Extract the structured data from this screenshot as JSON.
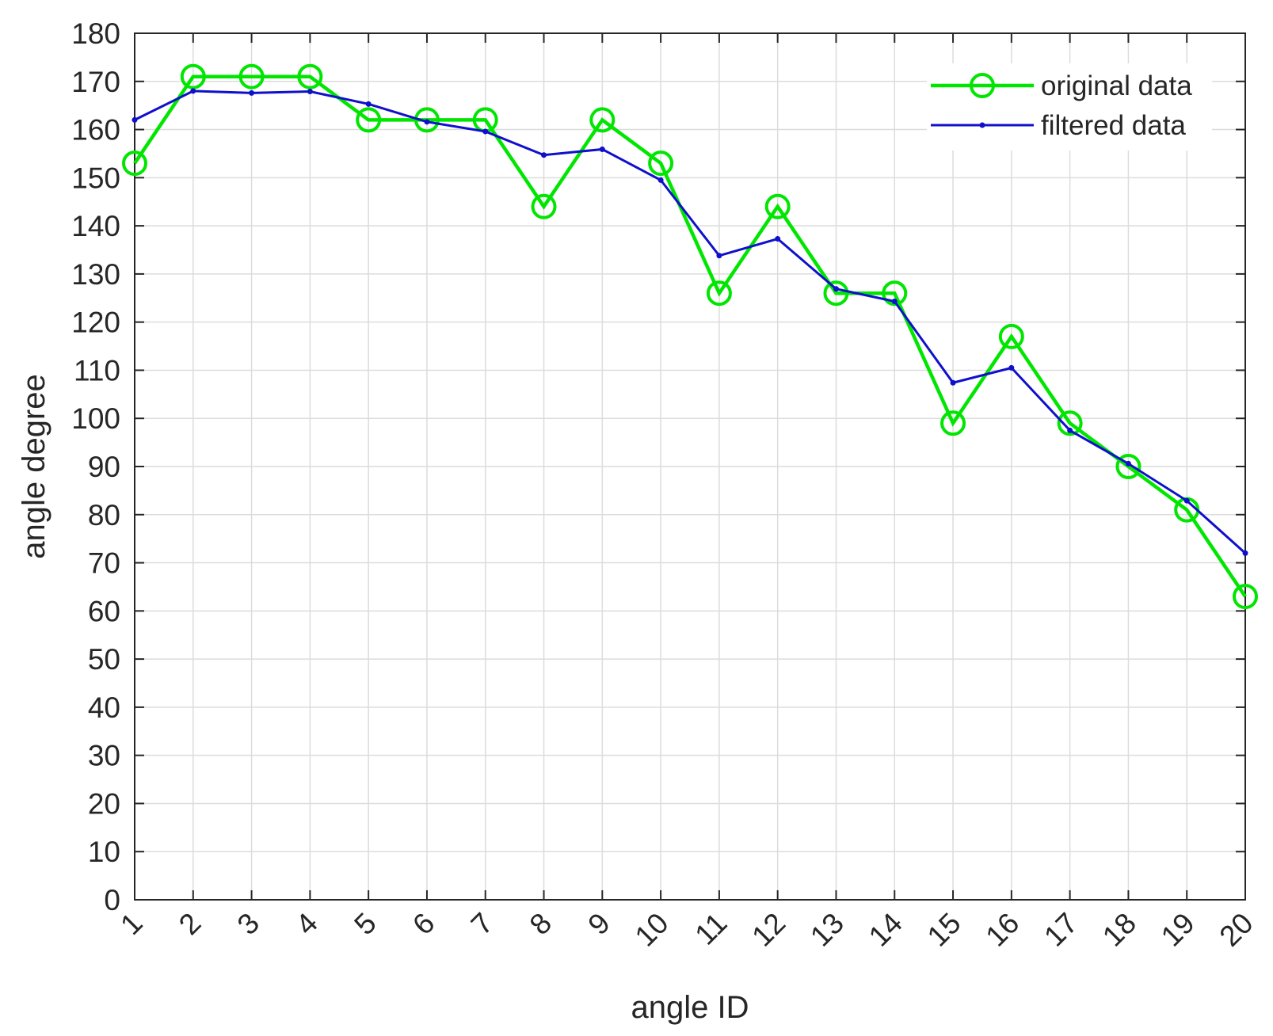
{
  "chart_data": {
    "type": "line",
    "xlabel": "angle ID",
    "ylabel": "angle degree",
    "x": [
      1,
      2,
      3,
      4,
      5,
      6,
      7,
      8,
      9,
      10,
      11,
      12,
      13,
      14,
      15,
      16,
      17,
      18,
      19,
      20
    ],
    "xlim": [
      1,
      20
    ],
    "ylim": [
      0,
      180
    ],
    "xticks": [
      "1",
      "2",
      "3",
      "4",
      "5",
      "6",
      "7",
      "8",
      "9",
      "10",
      "11",
      "12",
      "13",
      "14",
      "15",
      "16",
      "17",
      "18",
      "19",
      "20"
    ],
    "yticks": [
      0,
      10,
      20,
      30,
      40,
      50,
      60,
      70,
      80,
      90,
      100,
      110,
      120,
      130,
      140,
      150,
      160,
      170,
      180
    ],
    "grid": true,
    "legend_position": "top-right",
    "series": [
      {
        "name": "original data",
        "color": "#00e600",
        "marker": "circle",
        "values": [
          153,
          171,
          171,
          171,
          162,
          162,
          162,
          144,
          162,
          153,
          126,
          144,
          126,
          126,
          99,
          117,
          99,
          90,
          81,
          63
        ]
      },
      {
        "name": "filtered data",
        "color": "#1010cc",
        "marker": "dot",
        "values": [
          162,
          168,
          167.6,
          167.9,
          165.3,
          161.6,
          159.6,
          154.7,
          155.9,
          149.5,
          133.8,
          137.3,
          126.9,
          124.3,
          107.4,
          110.5,
          97.5,
          90.6,
          82.9,
          72
        ]
      }
    ]
  }
}
